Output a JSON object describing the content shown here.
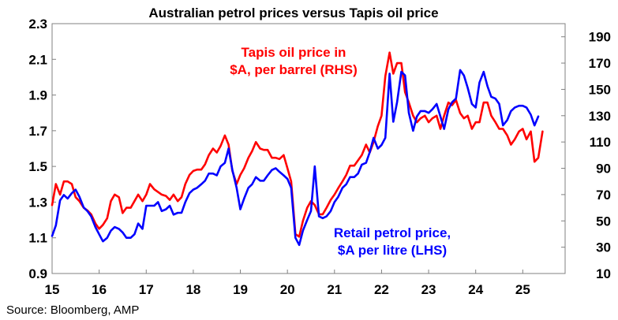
{
  "chart_data": {
    "type": "line",
    "title": "Australian petrol prices versus Tapis oil price",
    "source": "Source: Bloomberg, AMP",
    "x_axis": {
      "range": [
        15,
        25.9
      ],
      "ticks": [
        15,
        16,
        17,
        18,
        19,
        20,
        21,
        22,
        23,
        24,
        25
      ],
      "tick_labels": [
        "15",
        "16",
        "17",
        "18",
        "19",
        "20",
        "21",
        "22",
        "23",
        "24",
        "25"
      ]
    },
    "y_axis_left": {
      "range": [
        0.9,
        2.3
      ],
      "ticks": [
        0.9,
        1.1,
        1.3,
        1.5,
        1.7,
        1.9,
        2.1,
        2.3
      ],
      "tick_labels": [
        "0.9",
        "1.1",
        "1.3",
        "1.5",
        "1.7",
        "1.9",
        "2.1",
        "2.3"
      ]
    },
    "y_axis_right": {
      "range": [
        10,
        200
      ],
      "ticks": [
        10,
        30,
        50,
        70,
        90,
        110,
        130,
        150,
        170,
        190
      ],
      "tick_labels": [
        "10",
        "30",
        "50",
        "70",
        "90",
        "110",
        "130",
        "150",
        "170",
        "190"
      ]
    },
    "annotations": {
      "tapis_line1": "Tapis oil price in",
      "tapis_line2": "$A, per barrel (RHS)",
      "petrol_line1": "Retail petrol price,",
      "petrol_line2": "$A per litre (LHS)"
    },
    "series": [
      {
        "name": "Tapis oil price in $A, per barrel (RHS)",
        "axis": "right",
        "color": "#ff0000",
        "points": [
          [
            15.0,
            62
          ],
          [
            15.08,
            78
          ],
          [
            15.17,
            70
          ],
          [
            15.25,
            80
          ],
          [
            15.33,
            80
          ],
          [
            15.42,
            78
          ],
          [
            15.5,
            68
          ],
          [
            15.58,
            65
          ],
          [
            15.67,
            60
          ],
          [
            15.75,
            58
          ],
          [
            15.83,
            55
          ],
          [
            15.92,
            48
          ],
          [
            16.0,
            44
          ],
          [
            16.08,
            47
          ],
          [
            16.17,
            52
          ],
          [
            16.25,
            65
          ],
          [
            16.33,
            70
          ],
          [
            16.42,
            68
          ],
          [
            16.5,
            56
          ],
          [
            16.58,
            60
          ],
          [
            16.67,
            60
          ],
          [
            16.75,
            65
          ],
          [
            16.83,
            70
          ],
          [
            16.92,
            65
          ],
          [
            17.0,
            70
          ],
          [
            17.08,
            78
          ],
          [
            17.17,
            74
          ],
          [
            17.25,
            72
          ],
          [
            17.33,
            70
          ],
          [
            17.42,
            69
          ],
          [
            17.5,
            66
          ],
          [
            17.58,
            70
          ],
          [
            17.67,
            65
          ],
          [
            17.75,
            68
          ],
          [
            17.83,
            78
          ],
          [
            17.92,
            85
          ],
          [
            18.0,
            88
          ],
          [
            18.08,
            89
          ],
          [
            18.17,
            89
          ],
          [
            18.25,
            93
          ],
          [
            18.33,
            100
          ],
          [
            18.42,
            105
          ],
          [
            18.5,
            102
          ],
          [
            18.58,
            107
          ],
          [
            18.67,
            115
          ],
          [
            18.75,
            108
          ],
          [
            18.83,
            88
          ],
          [
            18.92,
            78
          ],
          [
            19.0,
            85
          ],
          [
            19.08,
            90
          ],
          [
            19.17,
            98
          ],
          [
            19.25,
            103
          ],
          [
            19.33,
            110
          ],
          [
            19.42,
            105
          ],
          [
            19.5,
            104
          ],
          [
            19.58,
            104
          ],
          [
            19.67,
            98
          ],
          [
            19.75,
            98
          ],
          [
            19.83,
            97
          ],
          [
            19.92,
            100
          ],
          [
            20.0,
            90
          ],
          [
            20.08,
            80
          ],
          [
            20.17,
            40
          ],
          [
            20.25,
            38
          ],
          [
            20.33,
            50
          ],
          [
            20.42,
            60
          ],
          [
            20.5,
            65
          ],
          [
            20.58,
            62
          ],
          [
            20.67,
            55
          ],
          [
            20.75,
            55
          ],
          [
            20.83,
            60
          ],
          [
            20.92,
            66
          ],
          [
            21.0,
            70
          ],
          [
            21.08,
            75
          ],
          [
            21.17,
            80
          ],
          [
            21.25,
            85
          ],
          [
            21.33,
            92
          ],
          [
            21.42,
            92
          ],
          [
            21.5,
            96
          ],
          [
            21.58,
            100
          ],
          [
            21.67,
            108
          ],
          [
            21.75,
            102
          ],
          [
            21.83,
            110
          ],
          [
            21.92,
            122
          ],
          [
            22.0,
            130
          ],
          [
            22.08,
            160
          ],
          [
            22.17,
            178
          ],
          [
            22.25,
            162
          ],
          [
            22.33,
            170
          ],
          [
            22.42,
            170
          ],
          [
            22.5,
            148
          ],
          [
            22.58,
            140
          ],
          [
            22.67,
            130
          ],
          [
            22.75,
            125
          ],
          [
            22.83,
            128
          ],
          [
            22.92,
            130
          ],
          [
            23.0,
            125
          ],
          [
            23.08,
            128
          ],
          [
            23.17,
            130
          ],
          [
            23.25,
            120
          ],
          [
            23.33,
            130
          ],
          [
            23.42,
            140
          ],
          [
            23.5,
            138
          ],
          [
            23.58,
            142
          ],
          [
            23.67,
            132
          ],
          [
            23.75,
            128
          ],
          [
            23.83,
            130
          ],
          [
            23.92,
            120
          ],
          [
            24.0,
            125
          ],
          [
            24.08,
            125
          ],
          [
            24.17,
            140
          ],
          [
            24.25,
            140
          ],
          [
            24.33,
            130
          ],
          [
            24.42,
            125
          ],
          [
            24.5,
            120
          ],
          [
            24.58,
            120
          ],
          [
            24.67,
            115
          ],
          [
            24.75,
            108
          ],
          [
            24.83,
            112
          ],
          [
            24.92,
            118
          ],
          [
            25.0,
            120
          ],
          [
            25.08,
            112
          ],
          [
            25.17,
            118
          ],
          [
            25.25,
            95
          ],
          [
            25.33,
            98
          ],
          [
            25.42,
            118
          ]
        ]
      },
      {
        "name": "Retail petrol price, $A per litre (LHS)",
        "axis": "left",
        "color": "#0000ff",
        "points": [
          [
            15.0,
            1.11
          ],
          [
            15.08,
            1.17
          ],
          [
            15.17,
            1.31
          ],
          [
            15.25,
            1.34
          ],
          [
            15.33,
            1.32
          ],
          [
            15.42,
            1.35
          ],
          [
            15.5,
            1.37
          ],
          [
            15.58,
            1.33
          ],
          [
            15.67,
            1.27
          ],
          [
            15.75,
            1.25
          ],
          [
            15.83,
            1.22
          ],
          [
            15.92,
            1.16
          ],
          [
            16.0,
            1.12
          ],
          [
            16.08,
            1.08
          ],
          [
            16.17,
            1.1
          ],
          [
            16.25,
            1.14
          ],
          [
            16.33,
            1.16
          ],
          [
            16.42,
            1.15
          ],
          [
            16.5,
            1.13
          ],
          [
            16.58,
            1.1
          ],
          [
            16.67,
            1.1
          ],
          [
            16.75,
            1.12
          ],
          [
            16.83,
            1.18
          ],
          [
            16.92,
            1.15
          ],
          [
            17.0,
            1.28
          ],
          [
            17.08,
            1.28
          ],
          [
            17.17,
            1.28
          ],
          [
            17.25,
            1.3
          ],
          [
            17.33,
            1.25
          ],
          [
            17.42,
            1.26
          ],
          [
            17.5,
            1.28
          ],
          [
            17.58,
            1.23
          ],
          [
            17.67,
            1.24
          ],
          [
            17.75,
            1.24
          ],
          [
            17.83,
            1.3
          ],
          [
            17.92,
            1.35
          ],
          [
            18.0,
            1.37
          ],
          [
            18.08,
            1.38
          ],
          [
            18.17,
            1.4
          ],
          [
            18.25,
            1.42
          ],
          [
            18.33,
            1.46
          ],
          [
            18.42,
            1.46
          ],
          [
            18.5,
            1.45
          ],
          [
            18.58,
            1.5
          ],
          [
            18.67,
            1.52
          ],
          [
            18.75,
            1.6
          ],
          [
            18.83,
            1.48
          ],
          [
            18.92,
            1.38
          ],
          [
            19.0,
            1.26
          ],
          [
            19.08,
            1.32
          ],
          [
            19.17,
            1.38
          ],
          [
            19.25,
            1.4
          ],
          [
            19.33,
            1.44
          ],
          [
            19.42,
            1.42
          ],
          [
            19.5,
            1.42
          ],
          [
            19.58,
            1.45
          ],
          [
            19.67,
            1.48
          ],
          [
            19.75,
            1.49
          ],
          [
            19.83,
            1.47
          ],
          [
            19.92,
            1.45
          ],
          [
            20.0,
            1.43
          ],
          [
            20.08,
            1.38
          ],
          [
            20.17,
            1.1
          ],
          [
            20.25,
            1.06
          ],
          [
            20.33,
            1.14
          ],
          [
            20.42,
            1.2
          ],
          [
            20.5,
            1.25
          ],
          [
            20.58,
            1.5
          ],
          [
            20.67,
            1.22
          ],
          [
            20.75,
            1.21
          ],
          [
            20.83,
            1.22
          ],
          [
            20.92,
            1.25
          ],
          [
            21.0,
            1.3
          ],
          [
            21.08,
            1.33
          ],
          [
            21.17,
            1.38
          ],
          [
            21.25,
            1.4
          ],
          [
            21.33,
            1.44
          ],
          [
            21.42,
            1.44
          ],
          [
            21.5,
            1.46
          ],
          [
            21.58,
            1.51
          ],
          [
            21.67,
            1.52
          ],
          [
            21.75,
            1.58
          ],
          [
            21.83,
            1.66
          ],
          [
            21.92,
            1.6
          ],
          [
            22.0,
            1.62
          ],
          [
            22.08,
            1.66
          ],
          [
            22.17,
            2.02
          ],
          [
            22.25,
            1.75
          ],
          [
            22.33,
            1.86
          ],
          [
            22.42,
            2.03
          ],
          [
            22.5,
            2.01
          ],
          [
            22.58,
            1.8
          ],
          [
            22.67,
            1.7
          ],
          [
            22.75,
            1.78
          ],
          [
            22.83,
            1.81
          ],
          [
            22.92,
            1.81
          ],
          [
            23.0,
            1.8
          ],
          [
            23.08,
            1.82
          ],
          [
            23.17,
            1.85
          ],
          [
            23.25,
            1.78
          ],
          [
            23.33,
            1.71
          ],
          [
            23.42,
            1.82
          ],
          [
            23.5,
            1.86
          ],
          [
            23.58,
            1.88
          ],
          [
            23.67,
            2.04
          ],
          [
            23.75,
            2.01
          ],
          [
            23.83,
            1.94
          ],
          [
            23.92,
            1.85
          ],
          [
            24.0,
            1.83
          ],
          [
            24.08,
            1.97
          ],
          [
            24.17,
            2.03
          ],
          [
            24.25,
            1.95
          ],
          [
            24.33,
            1.89
          ],
          [
            24.42,
            1.88
          ],
          [
            24.5,
            1.85
          ],
          [
            24.58,
            1.73
          ],
          [
            24.67,
            1.76
          ],
          [
            24.75,
            1.81
          ],
          [
            24.83,
            1.83
          ],
          [
            24.92,
            1.84
          ],
          [
            25.0,
            1.84
          ],
          [
            25.08,
            1.83
          ],
          [
            25.17,
            1.79
          ],
          [
            25.25,
            1.73
          ],
          [
            25.33,
            1.78
          ]
        ]
      }
    ]
  }
}
